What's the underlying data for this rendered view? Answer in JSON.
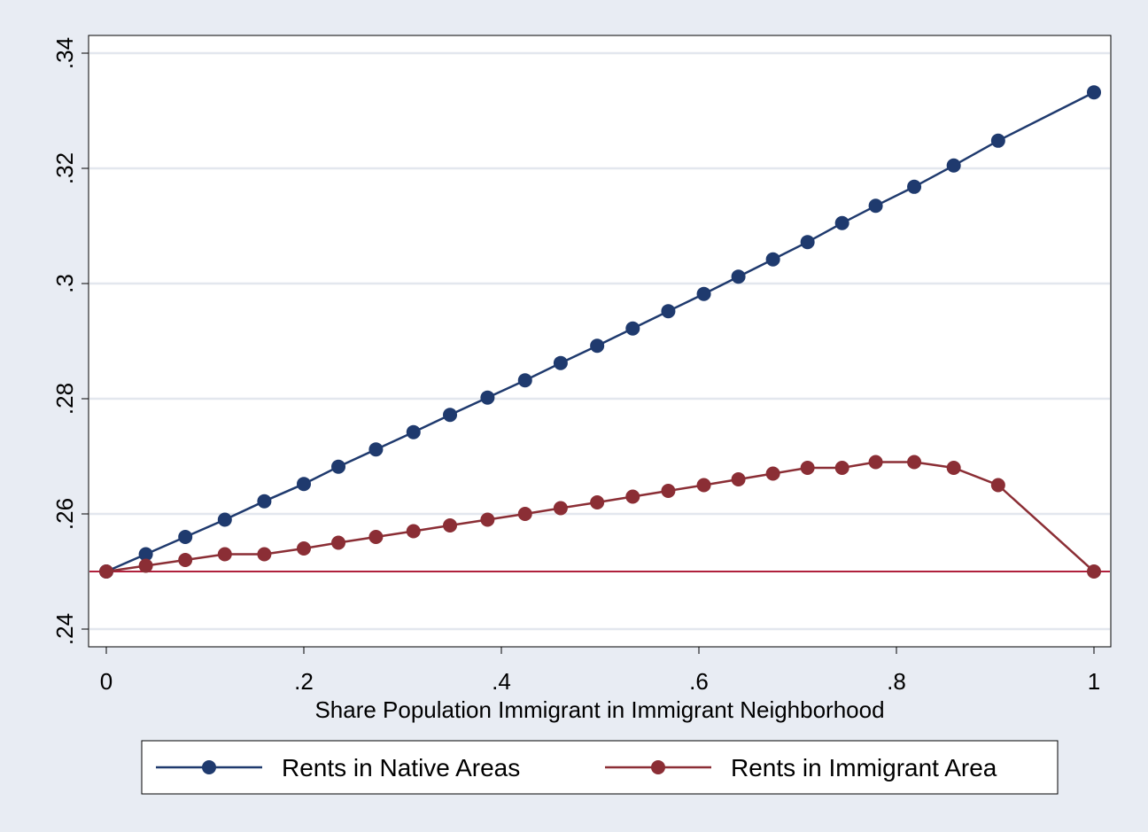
{
  "chart_data": {
    "type": "line",
    "title": "",
    "xlabel": "Share Population Immigrant in Immigrant Neighborhood",
    "ylabel": "",
    "xlim": [
      0,
      1
    ],
    "ylim": [
      0.24,
      0.34
    ],
    "x_ticks": [
      0,
      0.2,
      0.4,
      0.6,
      0.8,
      1
    ],
    "x_tick_labels": [
      "0",
      ".2",
      ".4",
      ".6",
      ".8",
      "1"
    ],
    "y_ticks": [
      0.24,
      0.26,
      0.28,
      0.3,
      0.32,
      0.34
    ],
    "y_tick_labels": [
      ".24",
      ".26",
      ".28",
      ".3",
      ".32",
      ".34"
    ],
    "grid": "horizontal",
    "legend_position": "bottom",
    "reference_line": {
      "y": 0.25,
      "color": "#b0203c"
    },
    "series": [
      {
        "name": "Rents in Native Areas",
        "color": "#1f3a6e",
        "x": [
          0,
          0.04,
          0.08,
          0.12,
          0.16,
          0.2,
          0.235,
          0.273,
          0.311,
          0.348,
          0.386,
          0.424,
          0.46,
          0.497,
          0.533,
          0.569,
          0.605,
          0.64,
          0.675,
          0.71,
          0.745,
          0.779,
          0.818,
          0.858,
          0.903,
          1
        ],
        "y": [
          0.25,
          0.253,
          0.256,
          0.259,
          0.2622,
          0.2652,
          0.2682,
          0.2712,
          0.2742,
          0.2772,
          0.2802,
          0.2832,
          0.2862,
          0.2892,
          0.2922,
          0.2952,
          0.2982,
          0.3012,
          0.3042,
          0.3072,
          0.3105,
          0.3135,
          0.3168,
          0.3205,
          0.3248,
          0.3332
        ]
      },
      {
        "name": "Rents in Immigrant Area",
        "color": "#8b2e35",
        "x": [
          0,
          0.04,
          0.08,
          0.12,
          0.16,
          0.2,
          0.235,
          0.273,
          0.311,
          0.348,
          0.386,
          0.424,
          0.46,
          0.497,
          0.533,
          0.569,
          0.605,
          0.64,
          0.675,
          0.71,
          0.745,
          0.779,
          0.818,
          0.858,
          0.903,
          1
        ],
        "y": [
          0.25,
          0.251,
          0.252,
          0.253,
          0.253,
          0.254,
          0.255,
          0.256,
          0.257,
          0.258,
          0.259,
          0.26,
          0.261,
          0.262,
          0.263,
          0.264,
          0.265,
          0.266,
          0.267,
          0.268,
          0.268,
          0.269,
          0.269,
          0.268,
          0.265,
          0.25
        ]
      }
    ]
  }
}
